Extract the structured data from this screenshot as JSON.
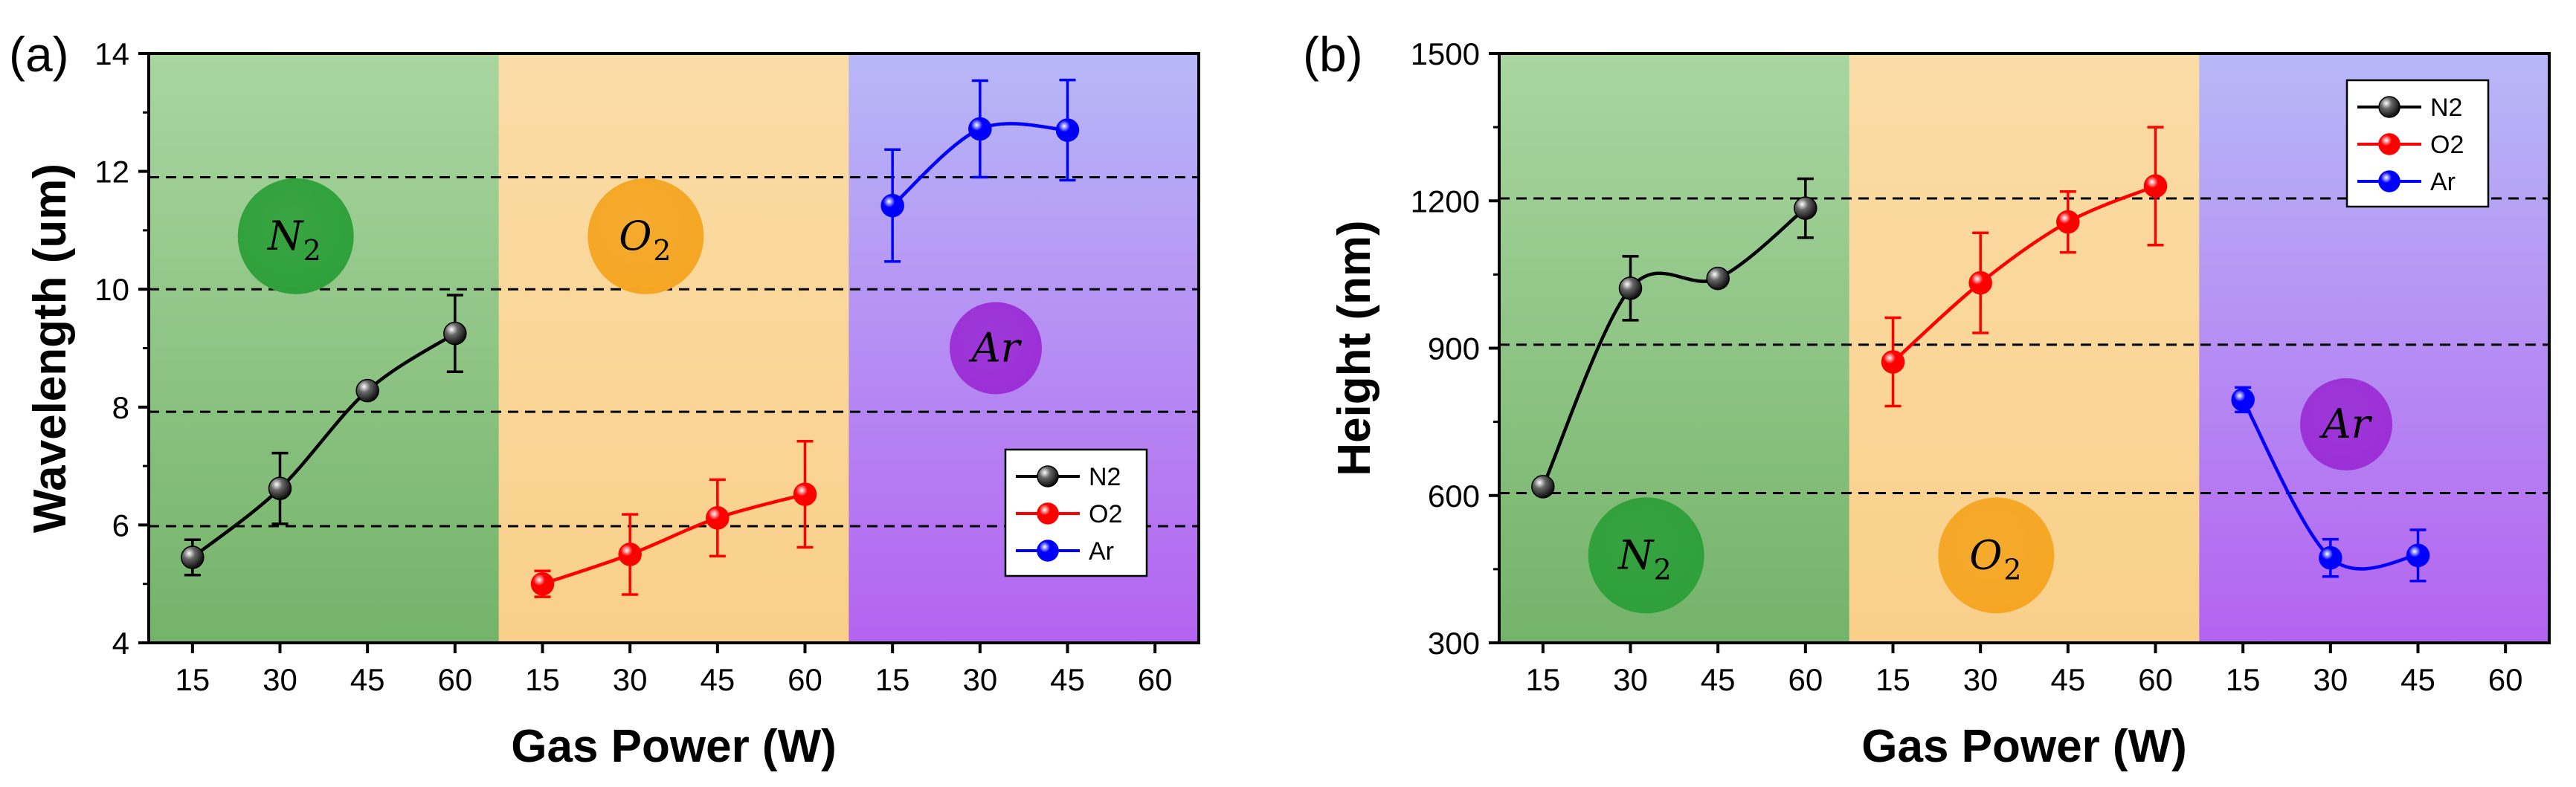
{
  "chart_data": [
    {
      "type": "line",
      "panel_label": "(a)",
      "xlabel": "Gas Power (W)",
      "ylabel": "Wavelength (um)",
      "ylim": [
        4,
        14
      ],
      "yticks": [
        4,
        6,
        8,
        10,
        12,
        14
      ],
      "ytick_labels": [
        "4",
        "6",
        "8",
        "10",
        "12",
        "14"
      ],
      "grid_lines": [
        5.98,
        7.92,
        10.0,
        11.9
      ],
      "x_tick_labels": [
        "15",
        "30",
        "45",
        "60",
        "15",
        "30",
        "45",
        "60",
        "15",
        "30",
        "45",
        "60"
      ],
      "regions": [
        {
          "gas": "N2",
          "badge_main": "N",
          "badge_sub": "2",
          "badge_color": "#2ea03a",
          "top_color": "#a9d6a0",
          "bottom_color": "#74b36a",
          "badge_y": 10.9
        },
        {
          "gas": "O2",
          "badge_main": "O",
          "badge_sub": "2",
          "badge_color": "#f5a623",
          "top_color": "#fbdca6",
          "bottom_color": "#f9d08a",
          "badge_y": 10.9
        },
        {
          "gas": "Ar",
          "badge_main": "Ar",
          "badge_sub": "",
          "badge_color": "#9b2fd6",
          "top_color": "#b7b8f7",
          "bottom_color": "#b463f0",
          "badge_y": 9.0
        }
      ],
      "legend_position": "lower-right",
      "series": [
        {
          "name": "N2",
          "color": "#000000",
          "region": 0,
          "x": [
            15,
            30,
            45,
            60
          ],
          "y": [
            5.45,
            6.62,
            8.28,
            9.25
          ],
          "err": [
            0.3,
            0.6,
            0.1,
            0.65
          ]
        },
        {
          "name": "O2",
          "color": "#ff0000",
          "region": 1,
          "x": [
            15,
            30,
            45,
            60
          ],
          "y": [
            5.0,
            5.5,
            6.12,
            6.52
          ],
          "err": [
            0.22,
            0.68,
            0.65,
            0.9
          ]
        },
        {
          "name": "Ar",
          "color": "#0000ff",
          "region": 2,
          "x": [
            15,
            30,
            45
          ],
          "y": [
            11.42,
            12.72,
            12.7
          ],
          "err": [
            0.95,
            0.82,
            0.85
          ]
        }
      ]
    },
    {
      "type": "line",
      "panel_label": "(b)",
      "xlabel": "Gas Power (W)",
      "ylabel": "Height (nm)",
      "ylim": [
        300,
        1500
      ],
      "yticks": [
        300,
        600,
        900,
        1200,
        1500
      ],
      "ytick_labels": [
        "300",
        "600",
        "900",
        "1200",
        "1500"
      ],
      "grid_lines": [
        605,
        907,
        1205
      ],
      "x_tick_labels": [
        "15",
        "30",
        "45",
        "60",
        "15",
        "30",
        "45",
        "60",
        "15",
        "30",
        "45",
        "60"
      ],
      "regions": [
        {
          "gas": "N2",
          "badge_main": "N",
          "badge_sub": "2",
          "badge_color": "#2ea03a",
          "top_color": "#a9d6a0",
          "bottom_color": "#74b36a",
          "badge_y": 478
        },
        {
          "gas": "O2",
          "badge_main": "O",
          "badge_sub": "2",
          "badge_color": "#f5a623",
          "top_color": "#fbdca6",
          "bottom_color": "#f9d08a",
          "badge_y": 478
        },
        {
          "gas": "Ar",
          "badge_main": "Ar",
          "badge_sub": "",
          "badge_color": "#9b2fd6",
          "top_color": "#b7b8f7",
          "bottom_color": "#b463f0",
          "badge_y": 745
        }
      ],
      "legend_position": "upper-right",
      "series": [
        {
          "name": "N2",
          "color": "#000000",
          "region": 0,
          "x": [
            15,
            30,
            45,
            60
          ],
          "y": [
            618,
            1022,
            1042,
            1185
          ],
          "err": [
            8,
            65,
            12,
            60
          ]
        },
        {
          "name": "O2",
          "color": "#ff0000",
          "region": 1,
          "x": [
            15,
            30,
            45,
            60
          ],
          "y": [
            872,
            1033,
            1157,
            1230
          ],
          "err": [
            90,
            102,
            62,
            120
          ]
        },
        {
          "name": "Ar",
          "color": "#0000ff",
          "region": 2,
          "x": [
            15,
            30,
            45
          ],
          "y": [
            795,
            473,
            478
          ],
          "err": [
            25,
            38,
            52
          ]
        }
      ]
    }
  ]
}
